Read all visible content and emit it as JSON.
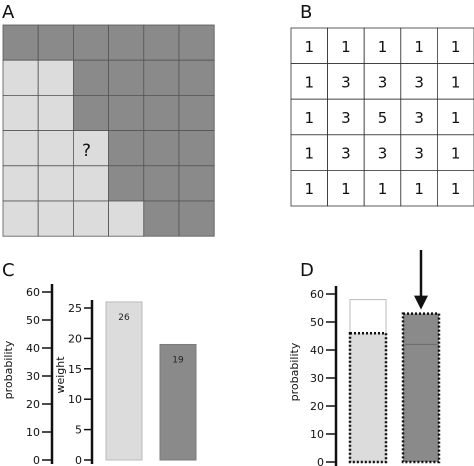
{
  "panel_labels": [
    "A",
    "B",
    "C",
    "D"
  ],
  "colors": {
    "dark": "#8a8a8a",
    "light": "#dcdcdc",
    "grid_line": "#555555",
    "axis": "#111111"
  },
  "panel_a": {
    "question_mark": "?",
    "cells": [
      [
        "dark",
        "dark",
        "dark",
        "dark",
        "dark",
        "dark"
      ],
      [
        "light",
        "light",
        "dark",
        "dark",
        "dark",
        "dark"
      ],
      [
        "light",
        "light",
        "dark",
        "dark",
        "dark",
        "dark"
      ],
      [
        "light",
        "light",
        "light",
        "dark",
        "dark",
        "dark"
      ],
      [
        "light",
        "light",
        "light",
        "dark",
        "dark",
        "dark"
      ],
      [
        "light",
        "light",
        "light",
        "light",
        "dark",
        "dark"
      ]
    ]
  },
  "panel_b": {
    "values": [
      [
        "1",
        "1",
        "1",
        "1",
        "1"
      ],
      [
        "1",
        "3",
        "3",
        "3",
        "1"
      ],
      [
        "1",
        "3",
        "5",
        "3",
        "1"
      ],
      [
        "1",
        "3",
        "3",
        "3",
        "1"
      ],
      [
        "1",
        "1",
        "1",
        "1",
        "1"
      ]
    ]
  },
  "chart_data": [
    {
      "panel": "C",
      "type": "axis",
      "ylabel": "probability",
      "ylim": [
        0,
        60
      ],
      "yticks": [
        "0",
        "10",
        "20",
        "30",
        "40",
        "50",
        "60"
      ]
    },
    {
      "panel": "C",
      "type": "bar",
      "ylabel": "weight",
      "ylim": [
        0,
        25
      ],
      "yticks": [
        "0",
        "5",
        "10",
        "15",
        "20",
        "25"
      ],
      "bars": [
        {
          "value": 26,
          "label": "26",
          "color": "light"
        },
        {
          "value": 19,
          "label": "19",
          "color": "dark"
        }
      ]
    },
    {
      "panel": "D",
      "type": "bar",
      "ylabel": "probability",
      "ylim": [
        0,
        60
      ],
      "yticks": [
        "0",
        "10",
        "20",
        "30",
        "40",
        "50",
        "60"
      ],
      "bars": [
        {
          "value": 46,
          "outline_value": 58,
          "color": "light"
        },
        {
          "value": 53,
          "outline_value": 42,
          "color": "dark"
        }
      ],
      "arrow_on_bar": 2
    }
  ]
}
